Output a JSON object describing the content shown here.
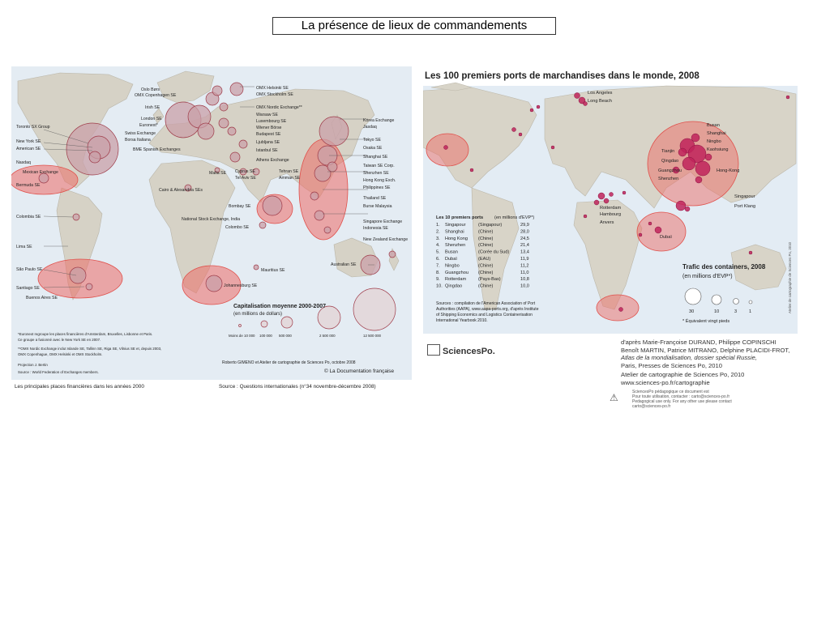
{
  "slide": {
    "title": "La présence de lieux de commandements"
  },
  "left_map": {
    "exchanges_left": [
      "Toronto SX Group",
      "New York SE",
      "American SE",
      "Nasdaq",
      "Mexican Exchange",
      "Bermuda SE",
      "Colombia SE",
      "Lima SE",
      "São Paulo SE",
      "Santiago SE",
      "Buenos Aires SE"
    ],
    "exchanges_europe": [
      "Oslo Børs",
      "OMX Copenhagen SE",
      "Irish SE",
      "London SE",
      "Euronext*",
      "Swiss Exchange",
      "Borsa Italiana",
      "BME Spanish Exchanges",
      "Malta SE",
      "Cairo & Alexandria SEs",
      "Cyprus SE",
      "Tel Aviv SE",
      "Bombay SE",
      "National Stock Exchange, India",
      "Colombo SE",
      "Mauritius SE",
      "Johannesburg SE"
    ],
    "exchanges_east": [
      "OMX Helsinki SE",
      "OMX Stockholm SE",
      "OMX Nordic Exchange**",
      "Warsaw SE",
      "Luxembourg SE",
      "Wiener Börse",
      "Budapest SE",
      "Ljubljana SE",
      "Istanbul SE",
      "Athens Exchange",
      "Tehran SE",
      "Amman SE",
      "Korea Exchange",
      "Jasdaq",
      "Tokyo SE",
      "Osaka SE",
      "Shanghai SE",
      "Taiwan SE Corp.",
      "Shenzhen SE",
      "Hong Kong Exch.",
      "Philippines SE",
      "Thailand SE",
      "Burse Malaysia",
      "Singapore Exchange",
      "Indonesia SE",
      "New Zealand Exchange",
      "Australian SE"
    ],
    "legend_title": "Capitalisation moyenne 2000-2007",
    "legend_subtitle": "(en millions de dollars)",
    "legend_values": [
      "Moins de 10 000",
      "100 000",
      "500 000",
      "2 500 000",
      "12 500 000"
    ],
    "footnotes": [
      "*Euronext regroupe les places financières d'Amsterdam, Bruxelles, Lisbonne et Paris.",
      "Ce groupe a fusionné avec le New York SE en 2007.",
      "**OMX Nordic Exchange inclut Islande SE, Tallinn SE, Riga SE, Vilnius SE et, depuis 2003,",
      "OMX Copenhague, OMX Helsinki et OMX Stockholm.",
      "Projection J. Bertin",
      "Source : World Federation of Exchanges members."
    ],
    "author": "Roberto GIMENO et Atelier de cartographie de Sciences Po, octobre 2008",
    "publisher": "© La Documentation française",
    "bottom_title": "Les principales places financières dans les années 2000",
    "source": "Source : Questions internationales (n°34 novembre-décembre 2008)"
  },
  "right_map": {
    "title": "Les 100 premiers ports de marchandises dans le monde, 2008",
    "port_labels_top": [
      "Los Angeles",
      "Long Beach"
    ],
    "port_labels_asia": [
      "Busan",
      "Shanghai",
      "Ningbo",
      "Kaohsiung",
      "Tianjin",
      "Qingdao",
      "Guangzhou",
      "Shenzhen",
      "Hong-Kong",
      "Singapour",
      "Port Klang"
    ],
    "port_labels_europe": [
      "Rotterdam",
      "Hambourg",
      "Anvers",
      "Dubaï"
    ],
    "ranking": {
      "title": "Les 10 premiers ports",
      "unit": "(en millions d'EVP*)",
      "rows": [
        {
          "rank": "1.",
          "port": "Singapour",
          "country": "(Singapour)",
          "value": "29,9"
        },
        {
          "rank": "2.",
          "port": "Shanghai",
          "country": "(Chine)",
          "value": "28,0"
        },
        {
          "rank": "3.",
          "port": "Hong Kong",
          "country": "(Chine)",
          "value": "24,5"
        },
        {
          "rank": "4.",
          "port": "Shenzhen",
          "country": "(Chine)",
          "value": "21,4"
        },
        {
          "rank": "5.",
          "port": "Busan",
          "country": "(Corée du Sud)",
          "value": "13,4"
        },
        {
          "rank": "6.",
          "port": "Dubaï",
          "country": "(EAU)",
          "value": "11,9"
        },
        {
          "rank": "7.",
          "port": "Ningbo",
          "country": "(Chine)",
          "value": "11,2"
        },
        {
          "rank": "8.",
          "port": "Guangzhou",
          "country": "(Chine)",
          "value": "11,0"
        },
        {
          "rank": "9.",
          "port": "Rotterdam",
          "country": "(Pays-Bas)",
          "value": "10,8"
        },
        {
          "rank": "10.",
          "port": "Qingdao",
          "country": "(Chine)",
          "value": "10,0"
        }
      ]
    },
    "sources": [
      "Sources : compilation de l'American Association of Port",
      "Authorities (AAPA), www.aapa-ports.org, d'après Institute",
      "of Shipping Economics and Logistics Containerisation",
      "International Yearbook 2010."
    ],
    "legend_title": "Trafic des containers, 2008",
    "legend_subtitle": "(en millions d'EVP*)",
    "legend_values": [
      "30",
      "10",
      "3",
      "1"
    ],
    "legend_note": "* Équivalent vingt pieds",
    "vertical_credit": "Atelier de cartographie de Sciences Po, 2010"
  },
  "credits": {
    "lines": [
      "d'après Marie-Françoise DURAND, Philippe COPINSCHI",
      "Benoît MARTIN, Patrice MITRANO, Delphine PLACIDI-FROT,"
    ],
    "atlas": "Atlas de la mondialisation, dossier spécial Russie,",
    "publisher": "Paris, Presses de Sciences Po, 2010",
    "atelier": "Atelier de cartographie de Sciences Po, 2010",
    "url": "www.sciences-po.fr/cartographie",
    "warning": [
      "SciencesPo pédagogique ce document est",
      "Pour toute utilisation, contacter : carto@sciences-po.fr",
      "Pedagogical use only. For any other use please contact",
      "carto@sciences-po.fr"
    ],
    "logo": "SciencesPo."
  }
}
